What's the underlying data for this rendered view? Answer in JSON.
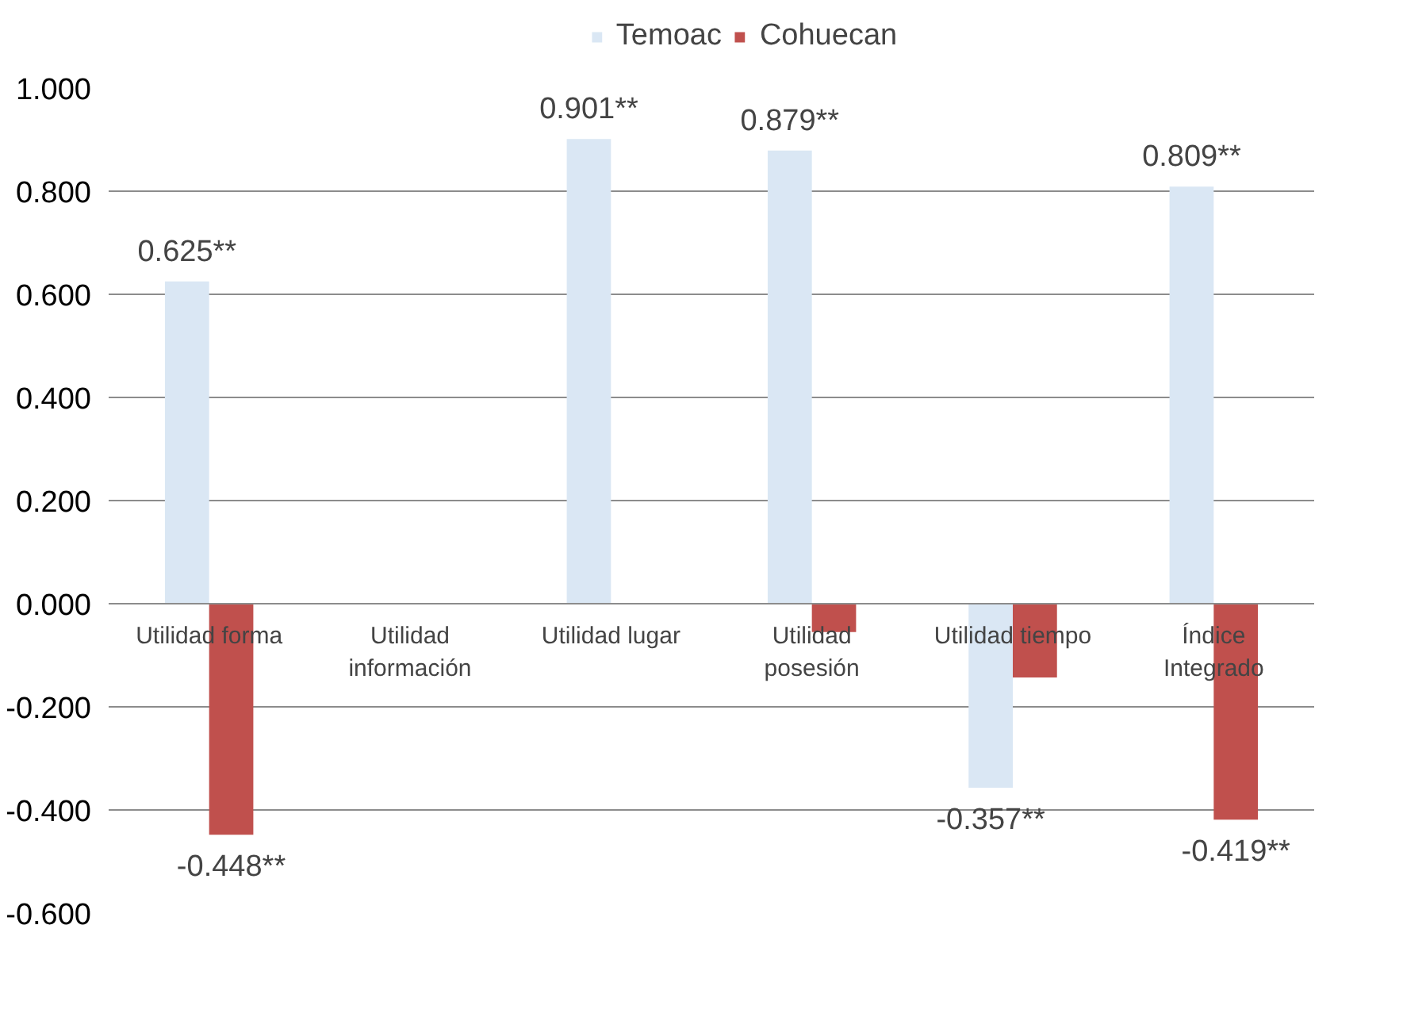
{
  "chart_data": {
    "type": "bar",
    "categories": [
      "Utilidad forma",
      "Utilidad información",
      "Utilidad lugar",
      "Utilidad posesión",
      "Utilidad tiempo",
      "Índice Integrado"
    ],
    "series": [
      {
        "name": "Temoac",
        "color": "#dae7f4",
        "values": [
          0.625,
          null,
          0.901,
          0.879,
          -0.357,
          0.809
        ],
        "value_labels": [
          "0.625**",
          null,
          "0.901**",
          "0.879**",
          "-0.357**",
          "0.809**"
        ]
      },
      {
        "name": "Cohuecan",
        "color": "#c0504d",
        "values": [
          -0.448,
          null,
          null,
          -0.055,
          -0.143,
          -0.419
        ],
        "value_labels": [
          "-0.448**",
          null,
          null,
          null,
          null,
          "-0.419**"
        ]
      }
    ],
    "ylim": [
      -0.6,
      1.0
    ],
    "yticks": [
      {
        "value": -0.6,
        "label": "-0.600"
      },
      {
        "value": -0.4,
        "label": "-0.400"
      },
      {
        "value": -0.2,
        "label": "-0.200"
      },
      {
        "value": 0,
        "label": "0.000"
      },
      {
        "value": 0.2,
        "label": "0.200"
      },
      {
        "value": 0.4,
        "label": "0.400"
      },
      {
        "value": 0.6,
        "label": "0.600"
      },
      {
        "value": 0.8,
        "label": "0.800"
      },
      {
        "value": 1.0,
        "label": "1.000"
      }
    ],
    "grid": "y",
    "legend": "top"
  }
}
